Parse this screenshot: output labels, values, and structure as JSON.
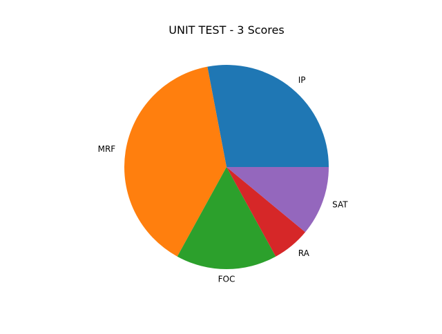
{
  "chart_data": {
    "type": "pie",
    "title": "UNIT TEST - 3 Scores",
    "start_angle_deg": 0,
    "direction": "counterclockwise",
    "legend": "none",
    "slices": [
      {
        "label": "IP",
        "value": 28,
        "color": "#1f77b4"
      },
      {
        "label": "MRF",
        "value": 39,
        "color": "#ff7f0e"
      },
      {
        "label": "FOC",
        "value": 16,
        "color": "#2ca02c"
      },
      {
        "label": "RA",
        "value": 6,
        "color": "#d62728"
      },
      {
        "label": "SAT",
        "value": 11,
        "color": "#9467bd"
      }
    ]
  }
}
